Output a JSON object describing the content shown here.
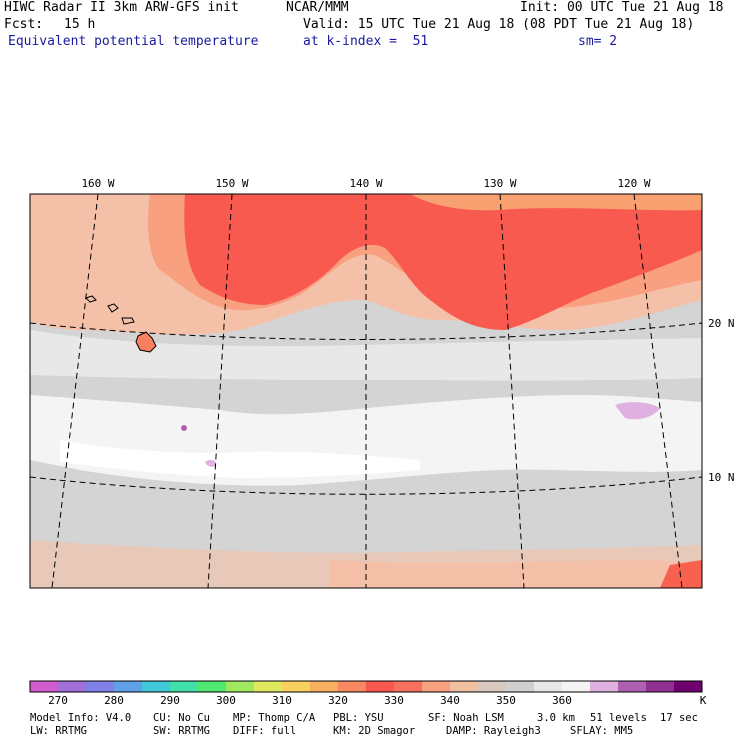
{
  "header": {
    "title_left": "HIWC Radar II 3km ARW-GFS init",
    "org": "NCAR/MMM",
    "init": "Init: 00 UTC Tue 21 Aug 18",
    "fcst_label": "Fcst:",
    "fcst_value": "15 h",
    "valid": "Valid: 15 UTC Tue 21 Aug 18 (08 PDT Tue 21 Aug 18)",
    "field": "Equivalent potential temperature",
    "level": "at k-index =  51",
    "smooth": "sm= 2"
  },
  "map": {
    "lon_labels": [
      "160 W",
      "150 W",
      "140 W",
      "130 W",
      "120 W"
    ],
    "lat_labels": [
      "20 N",
      "10 N"
    ]
  },
  "colorbar": {
    "colors": [
      "#d05cd0",
      "#a070d8",
      "#8080e8",
      "#60a0e8",
      "#40c8d8",
      "#40e0a8",
      "#50e870",
      "#a0e860",
      "#e0e860",
      "#f8d060",
      "#f8b060",
      "#f88860",
      "#f85850",
      "#f87060",
      "#f8a080",
      "#f0c0a0",
      "#d8c8c0",
      "#d0d0d0",
      "#e8e8e8",
      "#f4f4f4",
      "#e0b0e0",
      "#b060b0",
      "#903090",
      "#700070"
    ],
    "tick_labels": [
      "270",
      "280",
      "290",
      "300",
      "310",
      "320",
      "330",
      "340",
      "350",
      "360"
    ],
    "unit": "K"
  },
  "footer": {
    "line1": [
      "Model Info: V4.0",
      "CU: No Cu",
      "MP: Thomp C/A",
      "PBL: YSU",
      "SF: Noah LSM",
      "3.0 km",
      "51 levels",
      "17 sec"
    ],
    "line2": [
      "LW: RRTMG",
      "SW: RRTMG",
      "DIFF: full",
      "KM: 2D Smagor",
      "DAMP: Rayleigh3",
      "SFLAY: MM5"
    ]
  }
}
